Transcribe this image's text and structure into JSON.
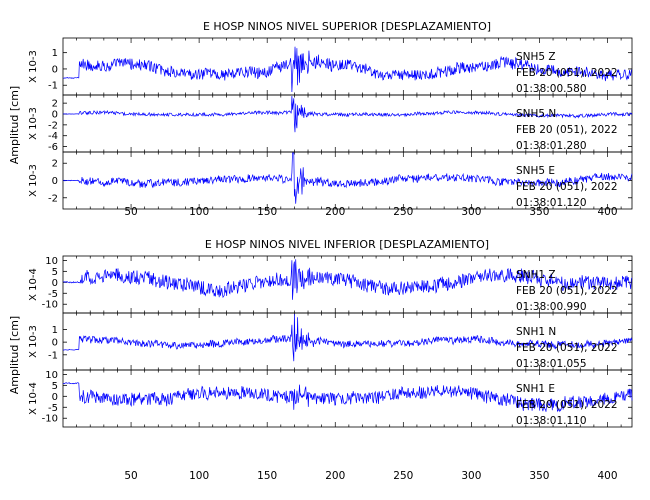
{
  "chart_data": [
    {
      "type": "line",
      "title": "E HOSP NINOS NIVEL SUPERIOR [DESPLAZAMIENTO]",
      "ylabel": "Amplitud [cm]",
      "xlim": [
        0,
        418
      ],
      "x_ticks": [
        50,
        100,
        150,
        200,
        250,
        300,
        350,
        400
      ],
      "series": [
        {
          "name": "SNH5 Z",
          "date": "FEB 20 (051), 2022",
          "time": "01:38:00.580",
          "scale_label": "X 10-3",
          "ylim": [
            -1.6,
            1.9
          ],
          "y_ticks": [
            -1,
            0,
            1
          ],
          "y_tick_labels": [
            "-1",
            "0",
            "1"
          ],
          "noise": 0.35,
          "drift": 0.5,
          "event": 1.1,
          "start": -0.55,
          "decay": 8,
          "color": "#0000ff"
        },
        {
          "name": "SNH5 N",
          "date": "FEB 20 (051), 2022",
          "time": "01:38:01.280",
          "scale_label": "X 10-3",
          "ylim": [
            -7,
            3.5
          ],
          "y_ticks": [
            -6,
            -4,
            -2,
            0,
            2
          ],
          "y_tick_labels": [
            "-6",
            "-4",
            "-2",
            "0",
            "2"
          ],
          "noise": 0.3,
          "drift": 0.4,
          "event": 3.2,
          "start": 0,
          "decay": 5,
          "color": "#0000ff"
        },
        {
          "name": "SNH5 E",
          "date": "FEB 20 (051), 2022",
          "time": "01:38:01.120",
          "scale_label": "X 10-3",
          "ylim": [
            -3.3,
            3.3
          ],
          "y_ticks": [
            -2,
            0,
            2
          ],
          "y_tick_labels": [
            "-2",
            "0",
            "2"
          ],
          "noise": 0.45,
          "drift": 0.5,
          "event": 2.4,
          "start": 0,
          "decay": 6,
          "color": "#0000ff"
        }
      ]
    },
    {
      "type": "line",
      "title": "E HOSP NINOS NIVEL INFERIOR [DESPLAZAMIENTO]",
      "ylabel": "Amplitud [cm]",
      "xlim": [
        0,
        418
      ],
      "x_ticks": [
        50,
        100,
        150,
        200,
        250,
        300,
        350,
        400
      ],
      "series": [
        {
          "name": "SNH1 Z",
          "date": "FEB 20 (051), 2022",
          "time": "01:38:00.990",
          "scale_label": "X 10-4",
          "ylim": [
            -14,
            12
          ],
          "y_ticks": [
            -10,
            -5,
            0,
            5,
            10
          ],
          "y_tick_labels": [
            "-10",
            "-5",
            "0",
            "5",
            "10"
          ],
          "noise": 3.2,
          "drift": 3.5,
          "event": 5,
          "start": 0,
          "decay": 8,
          "color": "#0000ff"
        },
        {
          "name": "SNH1 N",
          "date": "FEB 20 (051), 2022",
          "time": "01:38:01.055",
          "scale_label": "X 10-3",
          "ylim": [
            -2.2,
            2.3
          ],
          "y_ticks": [
            -1,
            0,
            1
          ],
          "y_tick_labels": [
            "-1",
            "0",
            "1"
          ],
          "noise": 0.28,
          "drift": 0.35,
          "event": 1.6,
          "start": -0.6,
          "decay": 6,
          "color": "#0000ff"
        },
        {
          "name": "SNH1 E",
          "date": "FEB 20 (051), 2022",
          "time": "01:38:01.110",
          "scale_label": "X 10-4",
          "ylim": [
            -14,
            12
          ],
          "y_ticks": [
            -10,
            -5,
            0,
            5,
            10
          ],
          "y_tick_labels": [
            "-10",
            "-5",
            "0",
            "5",
            "10"
          ],
          "noise": 3.0,
          "drift": 3.2,
          "event": 5,
          "start": 6,
          "decay": 7,
          "color": "#0000ff"
        }
      ]
    }
  ]
}
